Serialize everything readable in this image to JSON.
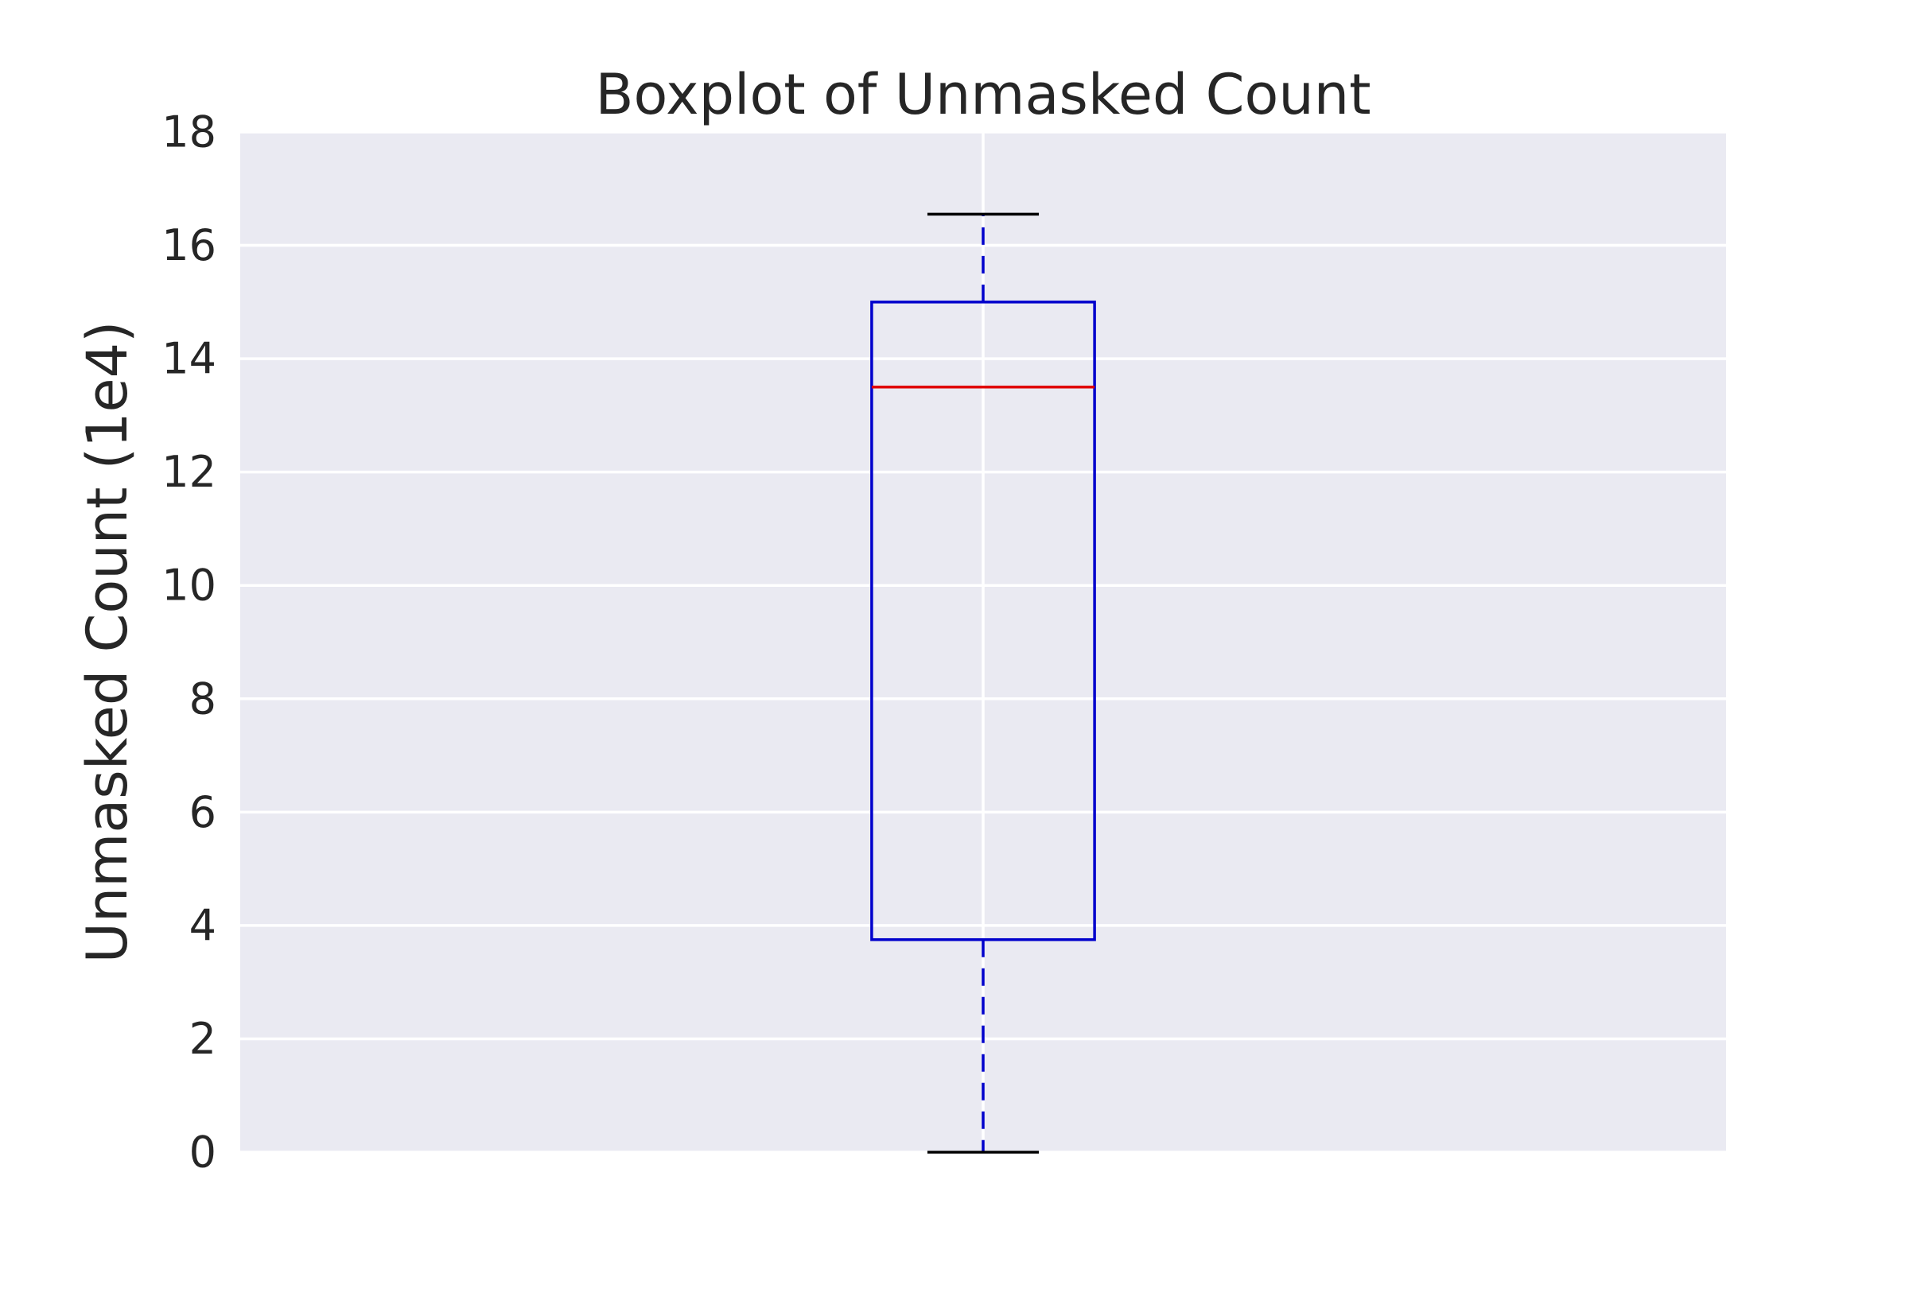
{
  "chart_data": {
    "type": "boxplot",
    "title": "Boxplot of Unmasked Count",
    "xlabel": "",
    "ylabel": "Unmasked Count (1e4)",
    "ylim": [
      0,
      18
    ],
    "yticks": [
      "0",
      "2",
      "4",
      "6",
      "8",
      "10",
      "12",
      "14",
      "16",
      "18"
    ],
    "grid": true,
    "legend": "none",
    "boxes": [
      {
        "whisker_low": 0,
        "q1": 3.75,
        "median": 13.5,
        "q3": 15.0,
        "whisker_high": 16.55
      }
    ],
    "colors": {
      "background": "#eaeaf2",
      "grid": "#ffffff",
      "box": "#0000cc",
      "median": "#e00000",
      "whisker": "#0000cc",
      "cap": "#000000",
      "text": "#262626"
    }
  }
}
